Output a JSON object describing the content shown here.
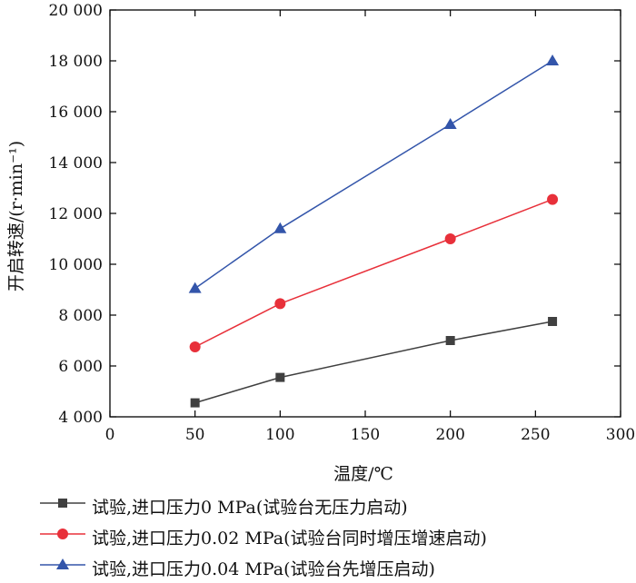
{
  "chart_data": {
    "type": "line",
    "xlabel": "温度/℃",
    "ylabel": "开启转速/(r·min⁻¹)",
    "xlim": [
      0,
      300
    ],
    "ylim": [
      4000,
      20000
    ],
    "x_ticks": [
      "0",
      "50",
      "100",
      "150",
      "200",
      "250",
      "300"
    ],
    "y_ticks": [
      "4 000",
      "6 000",
      "8 000",
      "10 000",
      "12 000",
      "14 000",
      "16 000",
      "18 000",
      "20 000"
    ],
    "x_tick_values": [
      0,
      50,
      100,
      150,
      200,
      250,
      300
    ],
    "y_tick_values": [
      4000,
      6000,
      8000,
      10000,
      12000,
      14000,
      16000,
      18000,
      20000
    ],
    "legend_position": "bottom",
    "grid": false,
    "series": [
      {
        "name": "试验,进口压力0 MPa(试验台无压力启动)",
        "color": "#404040",
        "marker": "square",
        "x": [
          50,
          100,
          200,
          260
        ],
        "values": [
          4550,
          5550,
          7000,
          7750
        ]
      },
      {
        "name": "试验,进口压力0.02 MPa(试验台同时增压增速启动)",
        "color": "#e8303a",
        "marker": "circle",
        "x": [
          50,
          100,
          200,
          260
        ],
        "values": [
          6750,
          8450,
          11000,
          12550
        ]
      },
      {
        "name": "试验,进口压力0.04 MPa(试验台先增压启动)",
        "color": "#3355aa",
        "marker": "triangle",
        "x": [
          50,
          100,
          200,
          260
        ],
        "values": [
          9050,
          11400,
          15500,
          18000
        ]
      }
    ]
  }
}
